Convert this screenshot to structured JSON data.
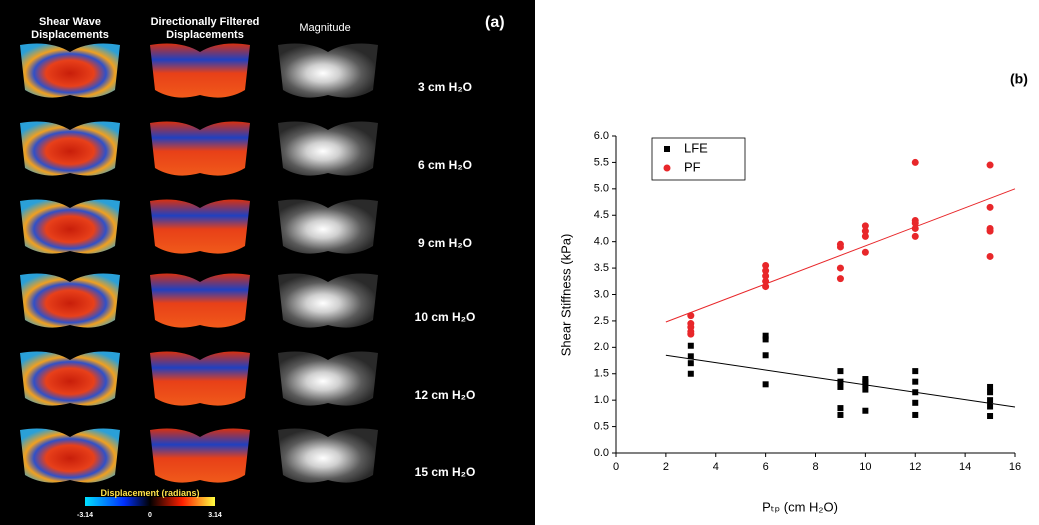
{
  "panel_a": {
    "title": "(a)",
    "columns": [
      "Shear Wave Displacements",
      "Directionally Filtered Displacements",
      "Magnitude"
    ],
    "rows": [
      "3 cm H₂O",
      "6 cm H₂O",
      "9 cm H₂O",
      "10 cm H₂O",
      "12 cm H₂O",
      "15 cm H₂O"
    ],
    "colorbar": {
      "label": "Displacement (radians)",
      "clim": [
        -3.14,
        3.14
      ],
      "ticks": [
        -3.14,
        0,
        3.14
      ]
    }
  },
  "chart_data": {
    "type": "scatter",
    "title": "(b)",
    "x_label": "Pₜₚ (cm H₂O)",
    "y_label": "Shear Stiffness (kPa)",
    "xlim": [
      0,
      16
    ],
    "xticks": [
      0,
      2,
      4,
      6,
      8,
      10,
      12,
      14,
      16
    ],
    "ylim": [
      0,
      6
    ],
    "yticks": [
      {
        "value": 0,
        "label": "0.0"
      },
      {
        "value": 0.5,
        "label": "0.5"
      },
      {
        "value": 1,
        "label": "1.0"
      },
      {
        "value": 1.5,
        "label": "1.5"
      },
      {
        "value": 2,
        "label": "2.0"
      },
      {
        "value": 2.5,
        "label": "2.5"
      },
      {
        "value": 3,
        "label": "3.0"
      },
      {
        "value": 3.5,
        "label": "3.5"
      },
      {
        "value": 4,
        "label": "4.0"
      },
      {
        "value": 4.5,
        "label": "4.5"
      },
      {
        "value": 5,
        "label": "5.0"
      },
      {
        "value": 5.5,
        "label": "5.5"
      },
      {
        "value": 6,
        "label": "6.0"
      }
    ],
    "legend": "upper left",
    "grid": false,
    "series": [
      {
        "name": "LFE",
        "color": "#000000",
        "marker": "square",
        "x": [
          3,
          3,
          3,
          3,
          6,
          6,
          6,
          6,
          9,
          9,
          9,
          9,
          9,
          10,
          10,
          10,
          10,
          10,
          12,
          12,
          12,
          12,
          12,
          15,
          15,
          15,
          15,
          15
        ],
        "values": [
          2.03,
          1.83,
          1.7,
          1.5,
          2.22,
          2.15,
          1.85,
          1.3,
          1.55,
          1.35,
          1.25,
          0.85,
          0.72,
          1.4,
          1.35,
          1.3,
          1.2,
          0.8,
          1.55,
          1.35,
          1.15,
          0.95,
          0.72,
          1.25,
          1.15,
          1.0,
          0.88,
          0.7
        ],
        "fit": {
          "x": [
            2,
            16
          ],
          "y": [
            1.85,
            0.87
          ]
        }
      },
      {
        "name": "PF",
        "color": "#e8272a",
        "marker": "circle",
        "x": [
          3,
          3,
          3,
          3,
          3,
          6,
          6,
          6,
          6,
          6,
          9,
          9,
          9,
          9,
          10,
          10,
          10,
          10,
          12,
          12,
          12,
          12,
          12,
          15,
          15,
          15,
          15,
          15
        ],
        "values": [
          2.6,
          2.45,
          2.38,
          2.3,
          2.25,
          3.55,
          3.45,
          3.35,
          3.25,
          3.15,
          3.95,
          3.9,
          3.5,
          3.3,
          4.3,
          4.2,
          4.1,
          3.8,
          5.5,
          4.4,
          4.35,
          4.25,
          4.1,
          5.45,
          4.65,
          4.25,
          4.2,
          3.72
        ],
        "fit": {
          "x": [
            2,
            16
          ],
          "y": [
            2.48,
            5.0
          ]
        }
      }
    ]
  }
}
